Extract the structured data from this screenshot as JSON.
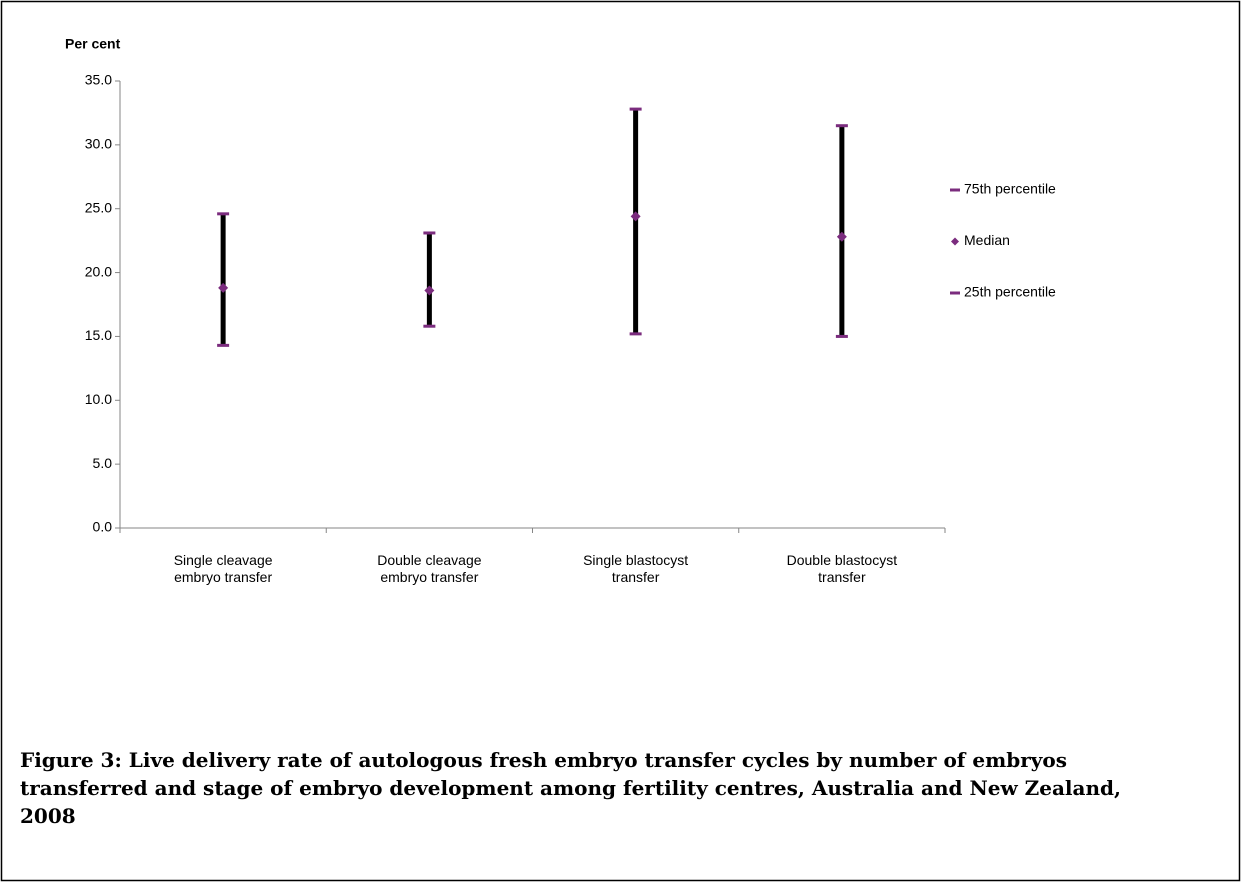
{
  "chart_data": {
    "type": "hlc",
    "caption": "Figure 3: Live delivery rate of autologous fresh embryo transfer cycles by number of embryos transferred and stage of embryo development among fertility centres, Australia and New Zealand, 2008",
    "y_label": "Per cent",
    "categories": [
      "Single cleavage embryo transfer",
      "Double cleavage embryo transfer",
      "Single blastocyst transfer",
      "Double blastocyst transfer"
    ],
    "series": [
      {
        "name": "75th percentile",
        "color": "#7b2c7e",
        "marker": "dash",
        "values": [
          24.6,
          23.1,
          32.8,
          31.5
        ]
      },
      {
        "name": "Median",
        "color": "#7b2c7e",
        "marker": "diamond",
        "values": [
          18.8,
          18.6,
          24.4,
          22.8
        ]
      },
      {
        "name": "25th percentile",
        "color": "#7b2c7e",
        "marker": "dash",
        "values": [
          14.3,
          15.8,
          15.2,
          15.0
        ]
      }
    ],
    "range_line_color": "#000000",
    "ylim": [
      0,
      35
    ],
    "yticks": [
      {
        "value": 0,
        "label": "0.0"
      },
      {
        "value": 5,
        "label": "5.0"
      },
      {
        "value": 10,
        "label": "10.0"
      },
      {
        "value": 15,
        "label": "15.0"
      },
      {
        "value": 20,
        "label": "20.0"
      },
      {
        "value": 25,
        "label": "25.0"
      },
      {
        "value": 30,
        "label": "30.0"
      },
      {
        "value": 35,
        "label": "35.0"
      }
    ],
    "legend": "right"
  }
}
